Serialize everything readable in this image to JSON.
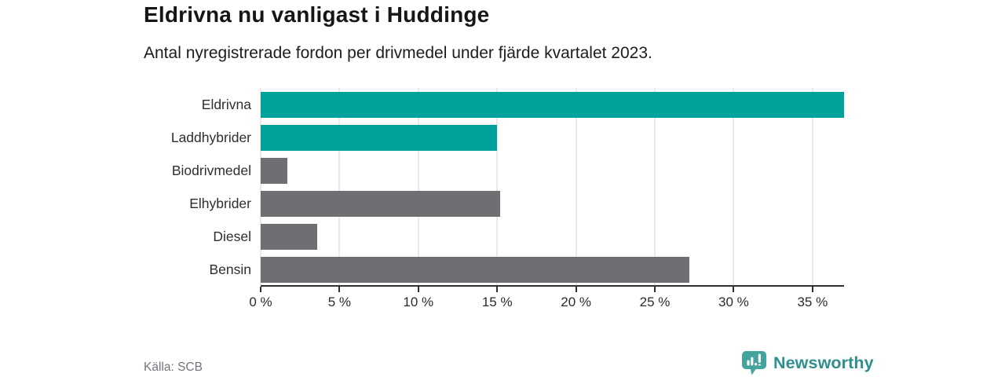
{
  "header": {
    "title": "Eldrivna nu vanligast i Huddinge",
    "subtitle": "Antal nyregistrerade fordon per drivmedel under fjärde kvartalet 2023."
  },
  "chart_data": {
    "type": "bar",
    "orientation": "horizontal",
    "title": "Eldrivna nu vanligast i Huddinge",
    "subtitle": "Antal nyregistrerade fordon per drivmedel under fjärde kvartalet 2023.",
    "categories": [
      "Eldrivna",
      "Laddhybrider",
      "Biodrivmedel",
      "Elhybrider",
      "Diesel",
      "Bensin"
    ],
    "values": [
      37.0,
      15.0,
      1.7,
      15.2,
      3.6,
      27.2
    ],
    "unit": "%",
    "series_colors": [
      "#00a39b",
      "#00a39b",
      "#6e6e73",
      "#6e6e73",
      "#6e6e73",
      "#6e6e73"
    ],
    "palette": {
      "accent_teal": "#00a39b",
      "neutral_gray": "#6e6e73"
    },
    "xlim": [
      0,
      37
    ],
    "x_ticks": [
      0,
      5,
      10,
      15,
      20,
      25,
      30,
      35
    ],
    "x_tick_labels": [
      "0 %",
      "5 %",
      "10 %",
      "15 %",
      "20 %",
      "25 %",
      "30 %",
      "35 %"
    ],
    "xlabel": "",
    "ylabel": "",
    "grid": "vertical-only",
    "legend": "none"
  },
  "footer": {
    "source": "Källa: SCB",
    "brand": "Newsworthy",
    "brand_color": "#2e8f8e",
    "brand_icon": "bar-chart-speech-bubble-icon",
    "brand_icon_color": "#45a39d"
  }
}
